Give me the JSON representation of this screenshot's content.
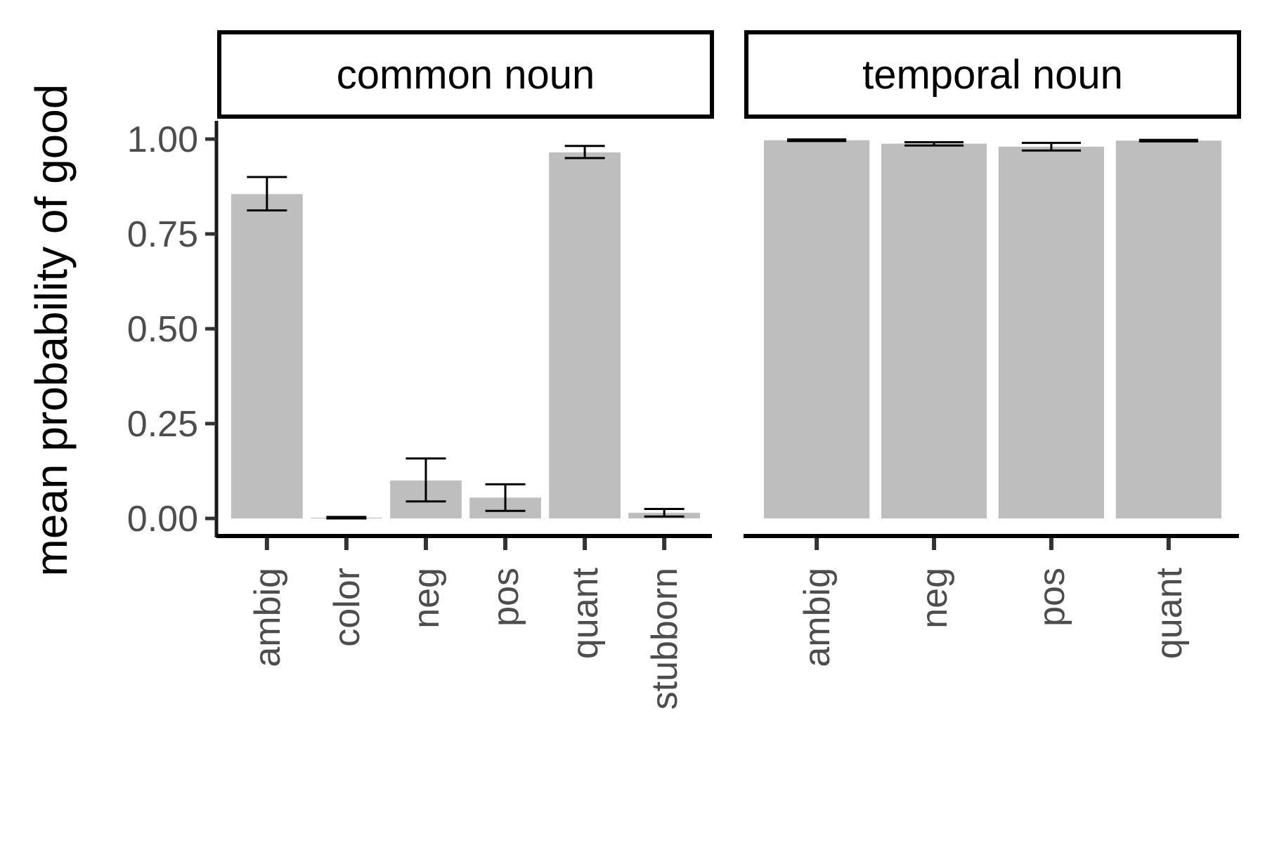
{
  "chart_data": {
    "type": "bar",
    "ylabel": "mean probability of good",
    "ylim": [
      0,
      1
    ],
    "yticks": [
      "0.00",
      "0.25",
      "0.50",
      "0.75",
      "1.00"
    ],
    "bar_color": "#bebebe",
    "error_bar_color": "#000000",
    "grid": false,
    "panels": [
      {
        "facet": "common noun",
        "categories": [
          "ambig",
          "color",
          "neg",
          "pos",
          "quant",
          "stubborn"
        ],
        "values": [
          0.855,
          0.002,
          0.1,
          0.055,
          0.965,
          0.015
        ],
        "error_low": [
          0.812,
          0.0,
          0.045,
          0.02,
          0.95,
          0.005
        ],
        "error_high": [
          0.9,
          0.004,
          0.158,
          0.09,
          0.982,
          0.025
        ]
      },
      {
        "facet": "temporal noun",
        "categories": [
          "ambig",
          "neg",
          "pos",
          "quant"
        ],
        "values": [
          0.997,
          0.988,
          0.98,
          0.996
        ],
        "error_low": [
          0.995,
          0.983,
          0.97,
          0.994
        ],
        "error_high": [
          0.999,
          0.992,
          0.99,
          0.998
        ]
      }
    ]
  }
}
